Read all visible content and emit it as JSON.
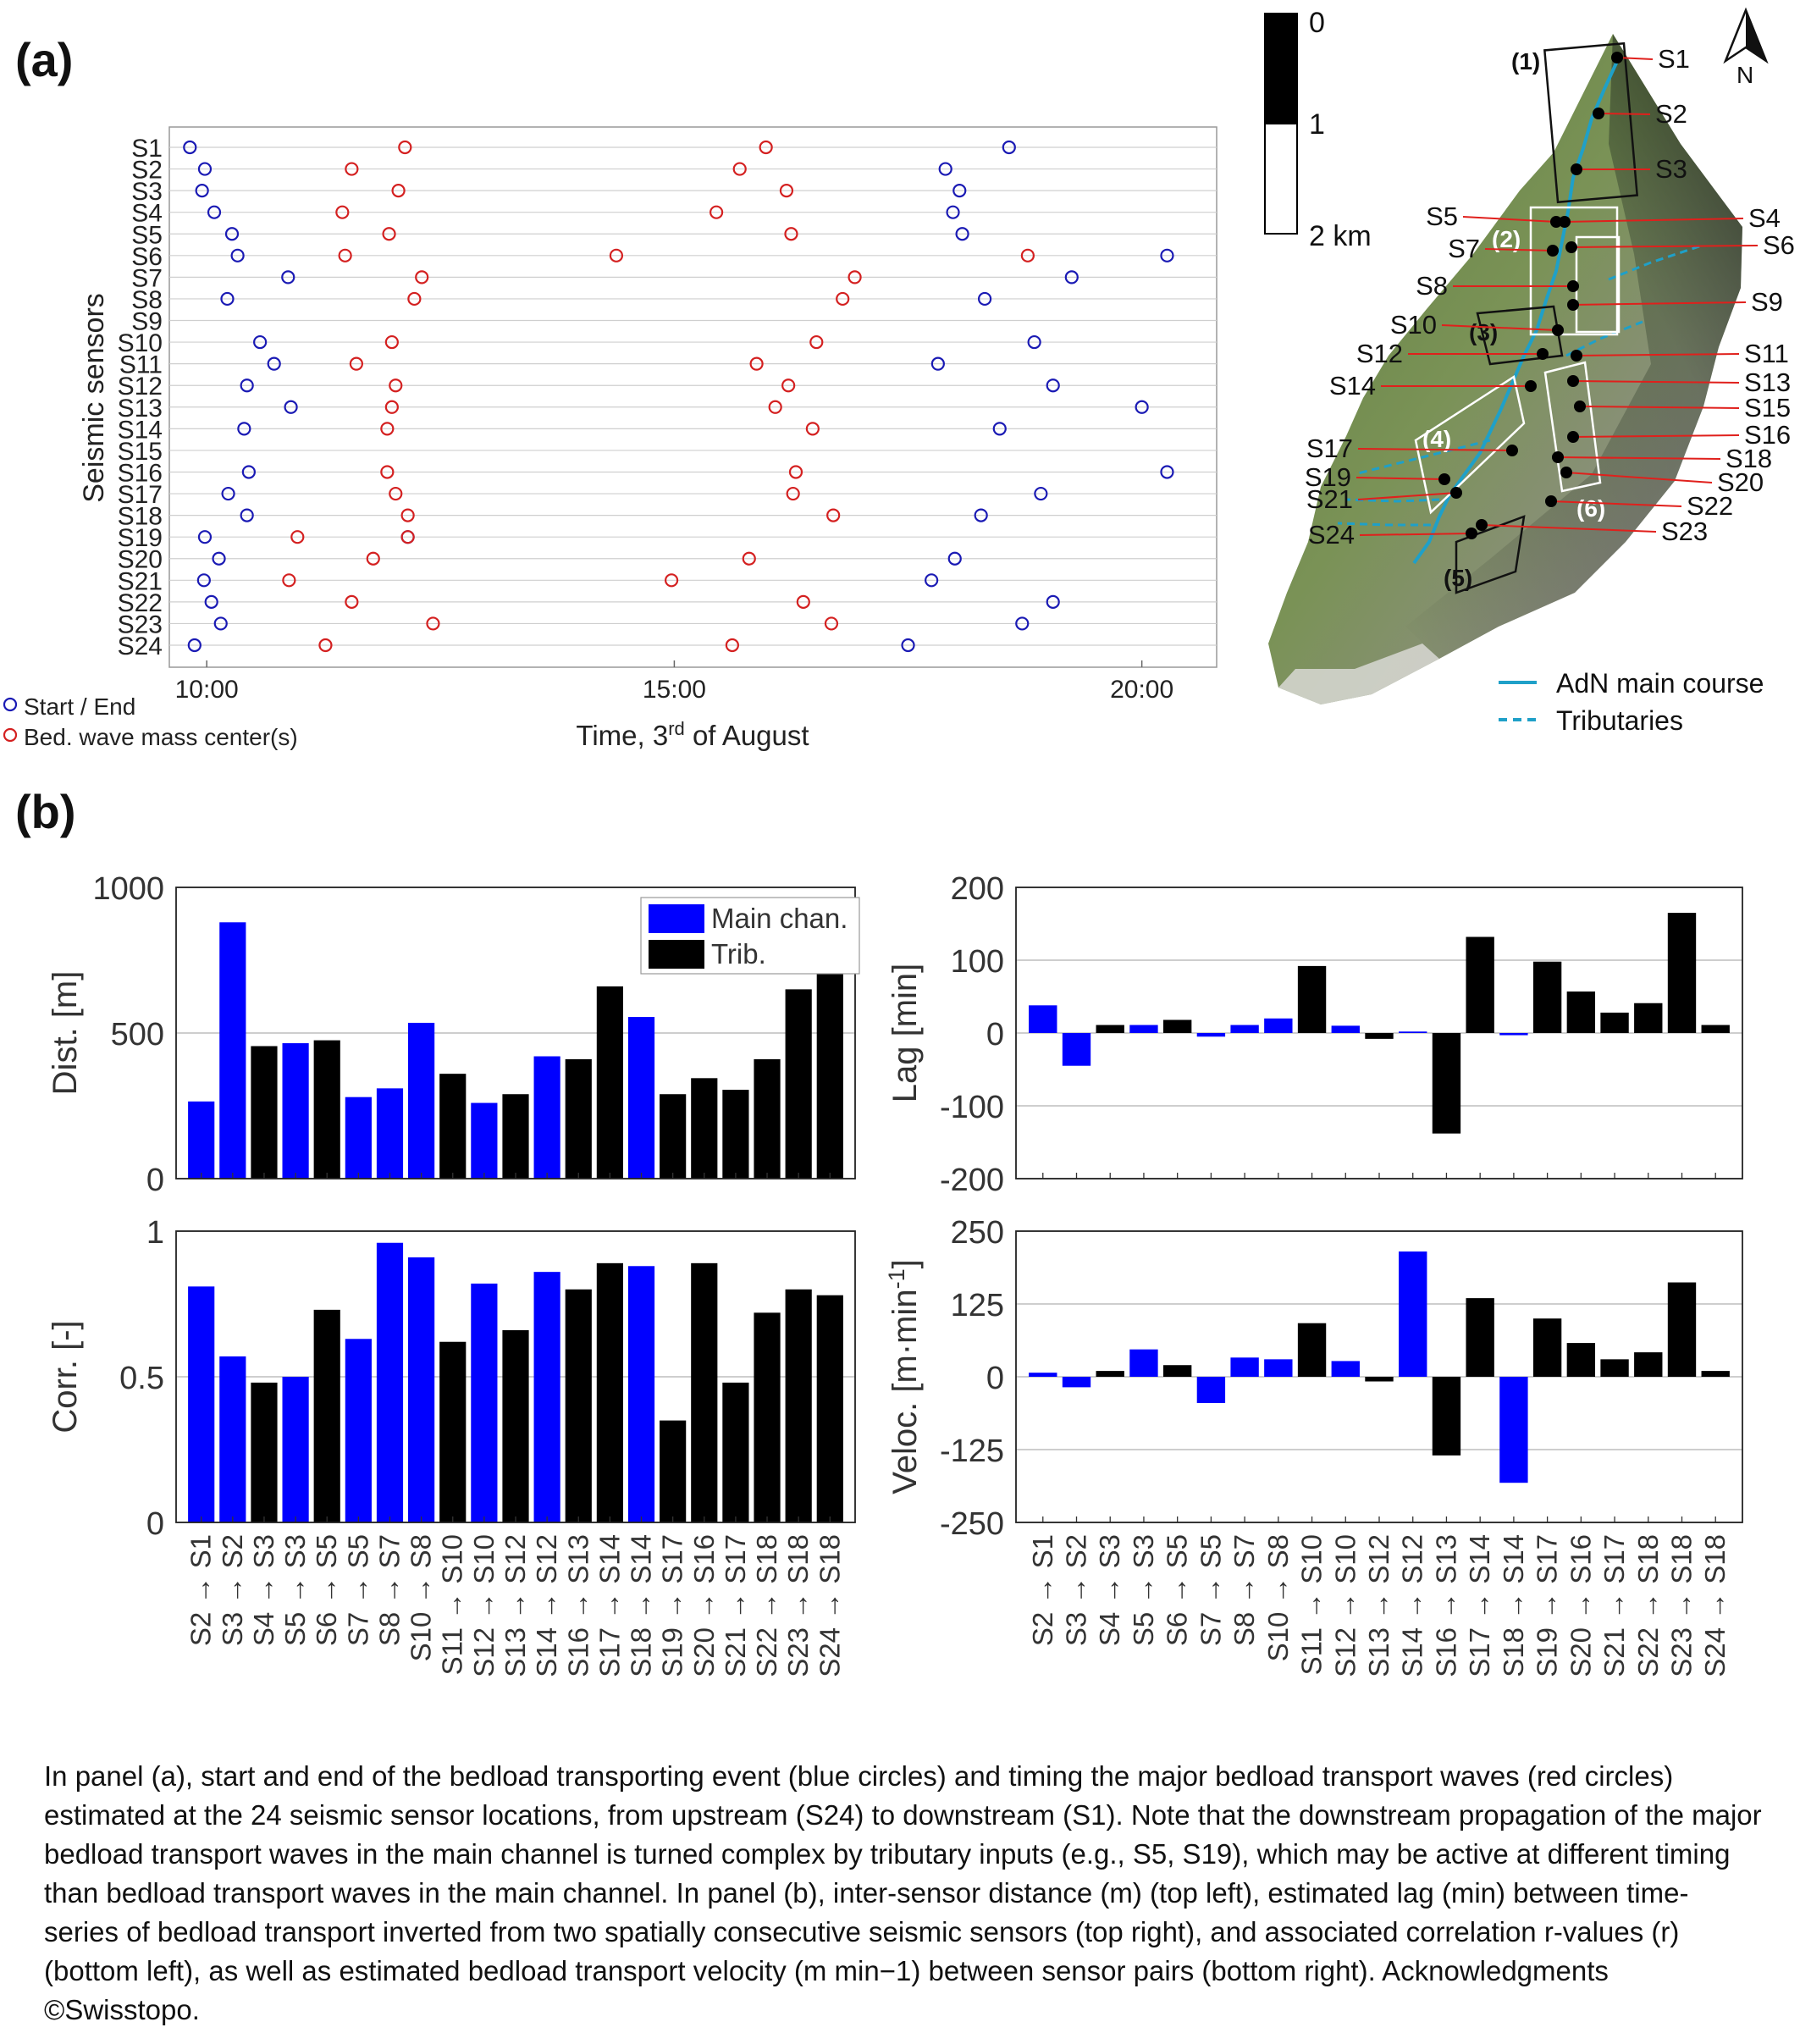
{
  "panel_labels": {
    "a": "(a)",
    "b": "(b)"
  },
  "colors": {
    "start_end": "#1a1ab4",
    "wave": "#d42020",
    "main_channel": "#0000ff",
    "tributary": "#000000",
    "grid": "#cfcfcf",
    "river": "#1fa0c8"
  },
  "map": {
    "scale_labels": [
      "0",
      "1",
      "2 km"
    ],
    "north_label": "N",
    "zone_labels": [
      "(1)",
      "(2)",
      "(3)",
      "(4)",
      "(5)",
      "(6)"
    ],
    "sensor_labels": [
      "S1",
      "S2",
      "S3",
      "S4",
      "S5",
      "S6",
      "S7",
      "S8",
      "S9",
      "S10",
      "S11",
      "S12",
      "S13",
      "S14",
      "S15",
      "S16",
      "S17",
      "S18",
      "S19",
      "S20",
      "S21",
      "S22",
      "S23",
      "S24"
    ],
    "legend_main": "AdN main course",
    "legend_trib": "Tributaries"
  },
  "caption": "In panel (a), start and end of the bedload transporting event (blue circles) and timing the major bedload transport waves (red circles) estimated at the 24 seismic sensor locations, from upstream (S24) to downstream (S1). Note that the downstream propagation of the major bedload transport waves in the main channel is turned complex by tributary inputs (e.g., S5, S19), which may be active at different timing than bedload transport waves in the main channel. In panel (b), inter-sensor distance (m) (top left), estimated lag (min) between time-series of bedload transport inverted from two spatially consecutive seismic sensors (top right), and associated correlation r-values (r) (bottom left), as well as estimated bedload transport velocity (m min−1) between sensor pairs (bottom right). Acknowledgments ©Swisstopo.",
  "chart_data": [
    {
      "id": "timeline",
      "type": "scatter",
      "ylabel": "Seismic sensors",
      "xlabel": "Time, 3rd of August",
      "xlim_hours": [
        9.6,
        20.8
      ],
      "x_ticks": [
        {
          "hour": 10,
          "label": "10:00"
        },
        {
          "hour": 15,
          "label": "15:00"
        },
        {
          "hour": 20,
          "label": "20:00"
        }
      ],
      "sensors": [
        "S1",
        "S2",
        "S3",
        "S4",
        "S5",
        "S6",
        "S7",
        "S8",
        "S9",
        "S10",
        "S11",
        "S12",
        "S13",
        "S14",
        "S15",
        "S16",
        "S17",
        "S18",
        "S19",
        "S20",
        "S21",
        "S22",
        "S23",
        "S24"
      ],
      "legend": [
        "Start / End",
        "Bed. wave mass center(s)"
      ],
      "start_end": [
        [
          "S1",
          9.82
        ],
        [
          "S1",
          18.58
        ],
        [
          "S2",
          9.98
        ],
        [
          "S2",
          17.9
        ],
        [
          "S3",
          9.95
        ],
        [
          "S3",
          18.05
        ],
        [
          "S4",
          10.08
        ],
        [
          "S4",
          17.98
        ],
        [
          "S5",
          10.27
        ],
        [
          "S5",
          18.08
        ],
        [
          "S6",
          10.33
        ],
        [
          "S6",
          20.27
        ],
        [
          "S7",
          10.87
        ],
        [
          "S7",
          19.25
        ],
        [
          "S8",
          10.22
        ],
        [
          "S8",
          18.32
        ],
        [
          "S10",
          10.57
        ],
        [
          "S10",
          18.85
        ],
        [
          "S11",
          10.72
        ],
        [
          "S11",
          17.82
        ],
        [
          "S12",
          10.43
        ],
        [
          "S12",
          19.05
        ],
        [
          "S13",
          10.9
        ],
        [
          "S13",
          20.0
        ],
        [
          "S14",
          10.4
        ],
        [
          "S14",
          18.48
        ],
        [
          "S16",
          10.45
        ],
        [
          "S16",
          20.27
        ],
        [
          "S17",
          10.23
        ],
        [
          "S17",
          18.92
        ],
        [
          "S18",
          10.43
        ],
        [
          "S18",
          18.28
        ],
        [
          "S19",
          9.98
        ],
        [
          "S19",
          12.15
        ],
        [
          "S20",
          10.13
        ],
        [
          "S20",
          18.0
        ],
        [
          "S21",
          9.97
        ],
        [
          "S21",
          17.75
        ],
        [
          "S22",
          10.05
        ],
        [
          "S22",
          19.05
        ],
        [
          "S23",
          10.15
        ],
        [
          "S23",
          18.72
        ],
        [
          "S24",
          9.87
        ],
        [
          "S24",
          17.5
        ]
      ],
      "waves": [
        [
          "S1",
          12.12
        ],
        [
          "S1",
          15.98
        ],
        [
          "S2",
          11.55
        ],
        [
          "S2",
          15.7
        ],
        [
          "S3",
          12.05
        ],
        [
          "S3",
          16.2
        ],
        [
          "S4",
          11.45
        ],
        [
          "S4",
          15.45
        ],
        [
          "S5",
          11.95
        ],
        [
          "S5",
          16.25
        ],
        [
          "S6",
          11.48
        ],
        [
          "S6",
          14.38
        ],
        [
          "S6",
          18.78
        ],
        [
          "S7",
          12.3
        ],
        [
          "S7",
          16.93
        ],
        [
          "S8",
          12.22
        ],
        [
          "S8",
          16.8
        ],
        [
          "S10",
          11.98
        ],
        [
          "S10",
          16.52
        ],
        [
          "S11",
          11.6
        ],
        [
          "S11",
          15.88
        ],
        [
          "S12",
          12.02
        ],
        [
          "S12",
          16.22
        ],
        [
          "S13",
          11.98
        ],
        [
          "S13",
          16.08
        ],
        [
          "S14",
          11.93
        ],
        [
          "S14",
          16.48
        ],
        [
          "S16",
          11.93
        ],
        [
          "S16",
          16.3
        ],
        [
          "S17",
          12.02
        ],
        [
          "S17",
          16.27
        ],
        [
          "S18",
          12.15
        ],
        [
          "S18",
          16.7
        ],
        [
          "S19",
          10.97
        ],
        [
          "S19",
          12.15
        ],
        [
          "S20",
          11.78
        ],
        [
          "S20",
          15.8
        ],
        [
          "S21",
          10.88
        ],
        [
          "S21",
          14.97
        ],
        [
          "S22",
          11.55
        ],
        [
          "S22",
          16.38
        ],
        [
          "S23",
          12.42
        ],
        [
          "S23",
          16.68
        ],
        [
          "S24",
          11.27
        ],
        [
          "S24",
          15.62
        ]
      ]
    },
    {
      "id": "dist",
      "type": "bar",
      "ylabel": "Dist. [m]",
      "ylim": [
        0,
        1000
      ],
      "yticks": [
        0,
        500,
        1000
      ],
      "legend": [
        "Main chan.",
        "Trib."
      ],
      "categories": [
        "S2 → S1",
        "S3 → S2",
        "S4 → S3",
        "S5 → S3",
        "S6 → S5",
        "S7 → S5",
        "S8 → S7",
        "S10 → S8",
        "S11 → S10",
        "S12 → S10",
        "S13 → S12",
        "S14 → S12",
        "S16 → S13",
        "S17 → S14",
        "S18 → S14",
        "S19 → S17",
        "S20 → S16",
        "S21 → S17",
        "S22 → S18",
        "S23 → S18",
        "S24 → S18"
      ],
      "values": [
        265,
        880,
        455,
        465,
        475,
        280,
        310,
        535,
        360,
        260,
        290,
        420,
        410,
        660,
        555,
        290,
        345,
        305,
        410,
        650,
        720
      ],
      "kind": [
        "main",
        "main",
        "trib",
        "main",
        "trib",
        "main",
        "main",
        "main",
        "trib",
        "main",
        "trib",
        "main",
        "trib",
        "trib",
        "main",
        "trib",
        "trib",
        "trib",
        "trib",
        "trib",
        "trib"
      ]
    },
    {
      "id": "lag",
      "type": "bar",
      "ylabel": "Lag [min]",
      "ylim": [
        -200,
        200
      ],
      "yticks": [
        -200,
        -100,
        0,
        100,
        200
      ],
      "categories": [
        "S2 → S1",
        "S3 → S2",
        "S4 → S3",
        "S5 → S3",
        "S6 → S5",
        "S7 → S5",
        "S8 → S7",
        "S10 → S8",
        "S11 → S10",
        "S12 → S10",
        "S13 → S12",
        "S14 → S12",
        "S16 → S13",
        "S17 → S14",
        "S18 → S14",
        "S19 → S17",
        "S20 → S16",
        "S21 → S17",
        "S22 → S18",
        "S23 → S18",
        "S24 → S18"
      ],
      "values": [
        38,
        -45,
        11,
        11,
        18,
        -5,
        11,
        20,
        92,
        10,
        -8,
        2,
        -138,
        132,
        -3,
        98,
        57,
        28,
        41,
        165,
        11
      ],
      "kind": [
        "main",
        "main",
        "trib",
        "main",
        "trib",
        "main",
        "main",
        "main",
        "trib",
        "main",
        "trib",
        "main",
        "trib",
        "trib",
        "main",
        "trib",
        "trib",
        "trib",
        "trib",
        "trib",
        "trib"
      ]
    },
    {
      "id": "corr",
      "type": "bar",
      "ylabel": "Corr. [-]",
      "ylim": [
        0,
        1
      ],
      "yticks": [
        0,
        0.5,
        1
      ],
      "categories": [
        "S2 → S1",
        "S3 → S2",
        "S4 → S3",
        "S5 → S3",
        "S6 → S5",
        "S7 → S5",
        "S8 → S7",
        "S10 → S8",
        "S11 → S10",
        "S12 → S10",
        "S13 → S12",
        "S14 → S12",
        "S16 → S13",
        "S17 → S14",
        "S18 → S14",
        "S19 → S17",
        "S20 → S16",
        "S21 → S17",
        "S22 → S18",
        "S23 → S18",
        "S24 → S18"
      ],
      "values": [
        0.81,
        0.57,
        0.48,
        0.5,
        0.73,
        0.63,
        0.96,
        0.91,
        0.62,
        0.82,
        0.66,
        0.86,
        0.8,
        0.89,
        0.88,
        0.35,
        0.89,
        0.48,
        0.72,
        0.8,
        0.78
      ],
      "kind": [
        "main",
        "main",
        "trib",
        "main",
        "trib",
        "main",
        "main",
        "main",
        "trib",
        "main",
        "trib",
        "main",
        "trib",
        "trib",
        "main",
        "trib",
        "trib",
        "trib",
        "trib",
        "trib",
        "trib"
      ]
    },
    {
      "id": "veloc",
      "type": "bar",
      "ylabel": "Veloc. [m·min-1]",
      "ylim": [
        -250,
        250
      ],
      "yticks": [
        -250,
        -125,
        0,
        125,
        250
      ],
      "categories": [
        "S2 → S1",
        "S3 → S2",
        "S4 → S3",
        "S5 → S3",
        "S6 → S5",
        "S7 → S5",
        "S8 → S7",
        "S10 → S8",
        "S11 → S10",
        "S12 → S10",
        "S13 → S12",
        "S14 → S12",
        "S16 → S13",
        "S17 → S14",
        "S18 → S14",
        "S19 → S17",
        "S20 → S16",
        "S21 → S17",
        "S22 → S18",
        "S23 → S18",
        "S24 → S18"
      ],
      "values": [
        7,
        -18,
        10,
        47,
        20,
        -45,
        33,
        30,
        92,
        27,
        -8,
        215,
        -135,
        135,
        -182,
        100,
        58,
        30,
        42,
        162,
        10
      ],
      "kind": [
        "main",
        "main",
        "trib",
        "main",
        "trib",
        "main",
        "main",
        "main",
        "trib",
        "main",
        "trib",
        "main",
        "trib",
        "trib",
        "main",
        "trib",
        "trib",
        "trib",
        "trib",
        "trib",
        "trib"
      ]
    }
  ]
}
